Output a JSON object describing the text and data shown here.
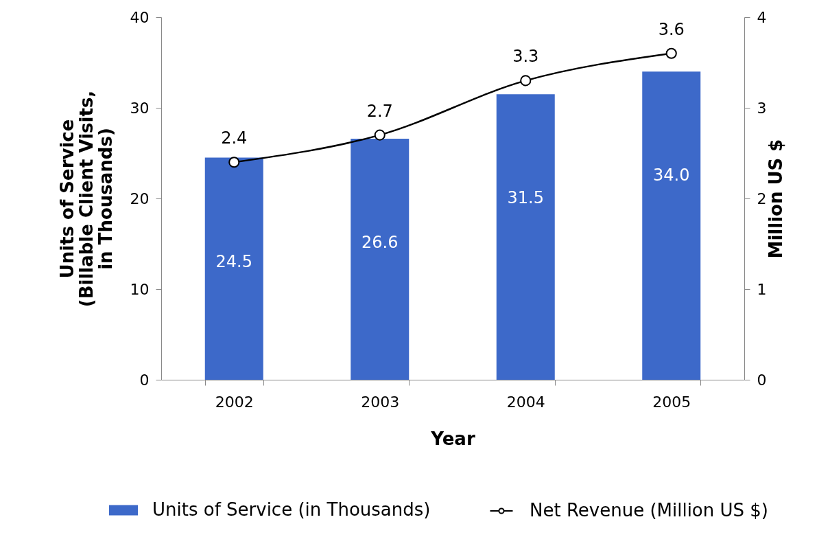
{
  "chart_data": {
    "type": "bar",
    "xlabel": "Year",
    "ylabel": "Units of Service (Billable Client Visits, in Thousands)",
    "y2label": "Million US $",
    "categories": [
      "2002",
      "2003",
      "2004",
      "2005"
    ],
    "series": [
      {
        "name": "Units of Service (in Thousands)",
        "color": "#3d69c9",
        "values": [
          24.5,
          26.6,
          31.5,
          34.0
        ],
        "value_labels": [
          "24.5",
          "26.6",
          "31.5",
          "34.0"
        ]
      },
      {
        "name": "Net Revenue (Million US $)",
        "type": "line",
        "axis": "y2",
        "color": "#000000",
        "marker": "circle",
        "values": [
          2.4,
          2.7,
          3.3,
          3.6
        ],
        "value_labels": [
          "2.4",
          "2.7",
          "3.3",
          "3.6"
        ]
      }
    ],
    "ylim": [
      0,
      40
    ],
    "yticks": [
      0,
      10,
      20,
      30,
      40
    ],
    "y2lim": [
      0,
      4
    ],
    "y2ticks": [
      0,
      1,
      2,
      3,
      4
    ],
    "grid": false,
    "legend": "bottom"
  }
}
